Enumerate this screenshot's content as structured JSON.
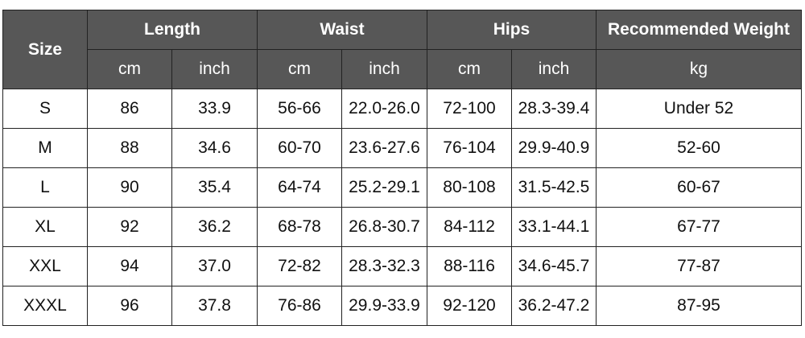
{
  "header": {
    "size": "Size",
    "groups": [
      "Length",
      "Waist",
      "Hips",
      "Recommended Weight"
    ],
    "units": [
      "cm",
      "inch",
      "cm",
      "inch",
      "cm",
      "inch",
      "kg"
    ]
  },
  "rows": [
    [
      "S",
      "86",
      "33.9",
      "56-66",
      "22.0-26.0",
      "72-100",
      "28.3-39.4",
      "Under 52"
    ],
    [
      "M",
      "88",
      "34.6",
      "60-70",
      "23.6-27.6",
      "76-104",
      "29.9-40.9",
      "52-60"
    ],
    [
      "L",
      "90",
      "35.4",
      "64-74",
      "25.2-29.1",
      "80-108",
      "31.5-42.5",
      "60-67"
    ],
    [
      "XL",
      "92",
      "36.2",
      "68-78",
      "26.8-30.7",
      "84-112",
      "33.1-44.1",
      "67-77"
    ],
    [
      "XXL",
      "94",
      "37.0",
      "72-82",
      "28.3-32.3",
      "88-116",
      "34.6-45.7",
      "77-87"
    ],
    [
      "XXXL",
      "96",
      "37.8",
      "76-86",
      "29.9-33.9",
      "92-120",
      "36.2-47.2",
      "87-95"
    ]
  ],
  "colors": {
    "header_bg": "#575757",
    "header_text": "#ffffff",
    "border": "#222222"
  }
}
